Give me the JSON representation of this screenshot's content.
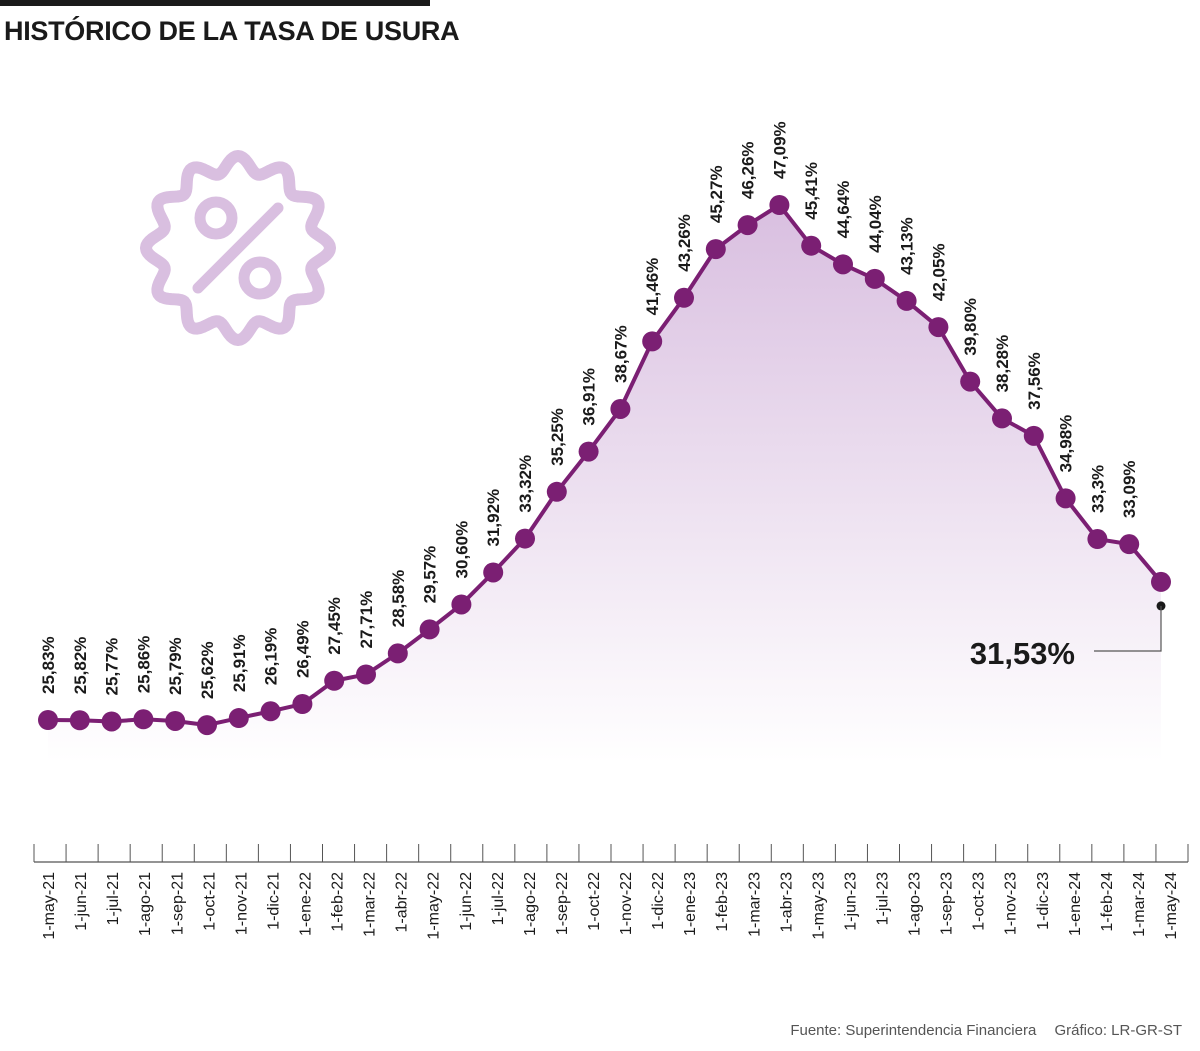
{
  "header": {
    "title": "HISTÓRICO DE LA TASA DE USURA"
  },
  "footer": {
    "source": "Fuente: Superintendencia Financiera",
    "credit": "Gráfico: LR-GR-ST"
  },
  "colors": {
    "line": "#7b1f73",
    "area_top": "#d9bfe0",
    "badge": "#d9bfe0",
    "text": "#1a1a1a"
  },
  "icon": {
    "name": "percent-badge-icon"
  },
  "chart_data": {
    "type": "area",
    "title": "HISTÓRICO DE LA TASA DE USURA",
    "xlabel": "",
    "ylabel": "",
    "categories": [
      "1-may-21",
      "1-jun-21",
      "1-jul-21",
      "1-ago-21",
      "1-sep-21",
      "1-oct-21",
      "1-nov-21",
      "1-dic-21",
      "1-ene-22",
      "1-feb-22",
      "1-mar-22",
      "1-abr-22",
      "1-may-22",
      "1-jun-22",
      "1-jul-22",
      "1-ago-22",
      "1-sep-22",
      "1-oct-22",
      "1-nov-22",
      "1-dic-22",
      "1-ene-23",
      "1-feb-23",
      "1-mar-23",
      "1-abr-23",
      "1-may-23",
      "1-jun-23",
      "1-jul-23",
      "1-ago-23",
      "1-sep-23",
      "1-oct-23",
      "1-nov-23",
      "1-dic-23",
      "1-ene-24",
      "1-feb-24",
      "1-mar-24",
      "1-may-24"
    ],
    "values": [
      25.83,
      25.82,
      25.77,
      25.86,
      25.79,
      25.62,
      25.91,
      26.19,
      26.49,
      27.45,
      27.71,
      28.58,
      29.57,
      30.6,
      31.92,
      33.32,
      35.25,
      36.91,
      38.67,
      41.46,
      43.26,
      45.27,
      46.26,
      47.09,
      45.41,
      44.64,
      44.04,
      43.13,
      42.05,
      39.8,
      38.28,
      37.56,
      34.98,
      33.3,
      33.09,
      31.53
    ],
    "labels": [
      "25,83%",
      "25,82%",
      "25,77%",
      "25,86%",
      "25,79%",
      "25,62%",
      "25,91%",
      "26,19%",
      "26,49%",
      "27,45%",
      "27,71%",
      "28,58%",
      "29,57%",
      "30,60%",
      "31,92%",
      "33,32%",
      "35,25%",
      "36,91%",
      "38,67%",
      "41,46%",
      "43,26%",
      "45,27%",
      "46,26%",
      "47,09%",
      "45,41%",
      "44,64%",
      "44,04%",
      "43,13%",
      "42,05%",
      "39,80%",
      "38,28%",
      "37,56%",
      "34,98%",
      "33,3%",
      "33,09%"
    ],
    "highlight_label": "31,53%",
    "ylim": [
      24,
      48
    ],
    "grid": false,
    "legend": "none"
  }
}
